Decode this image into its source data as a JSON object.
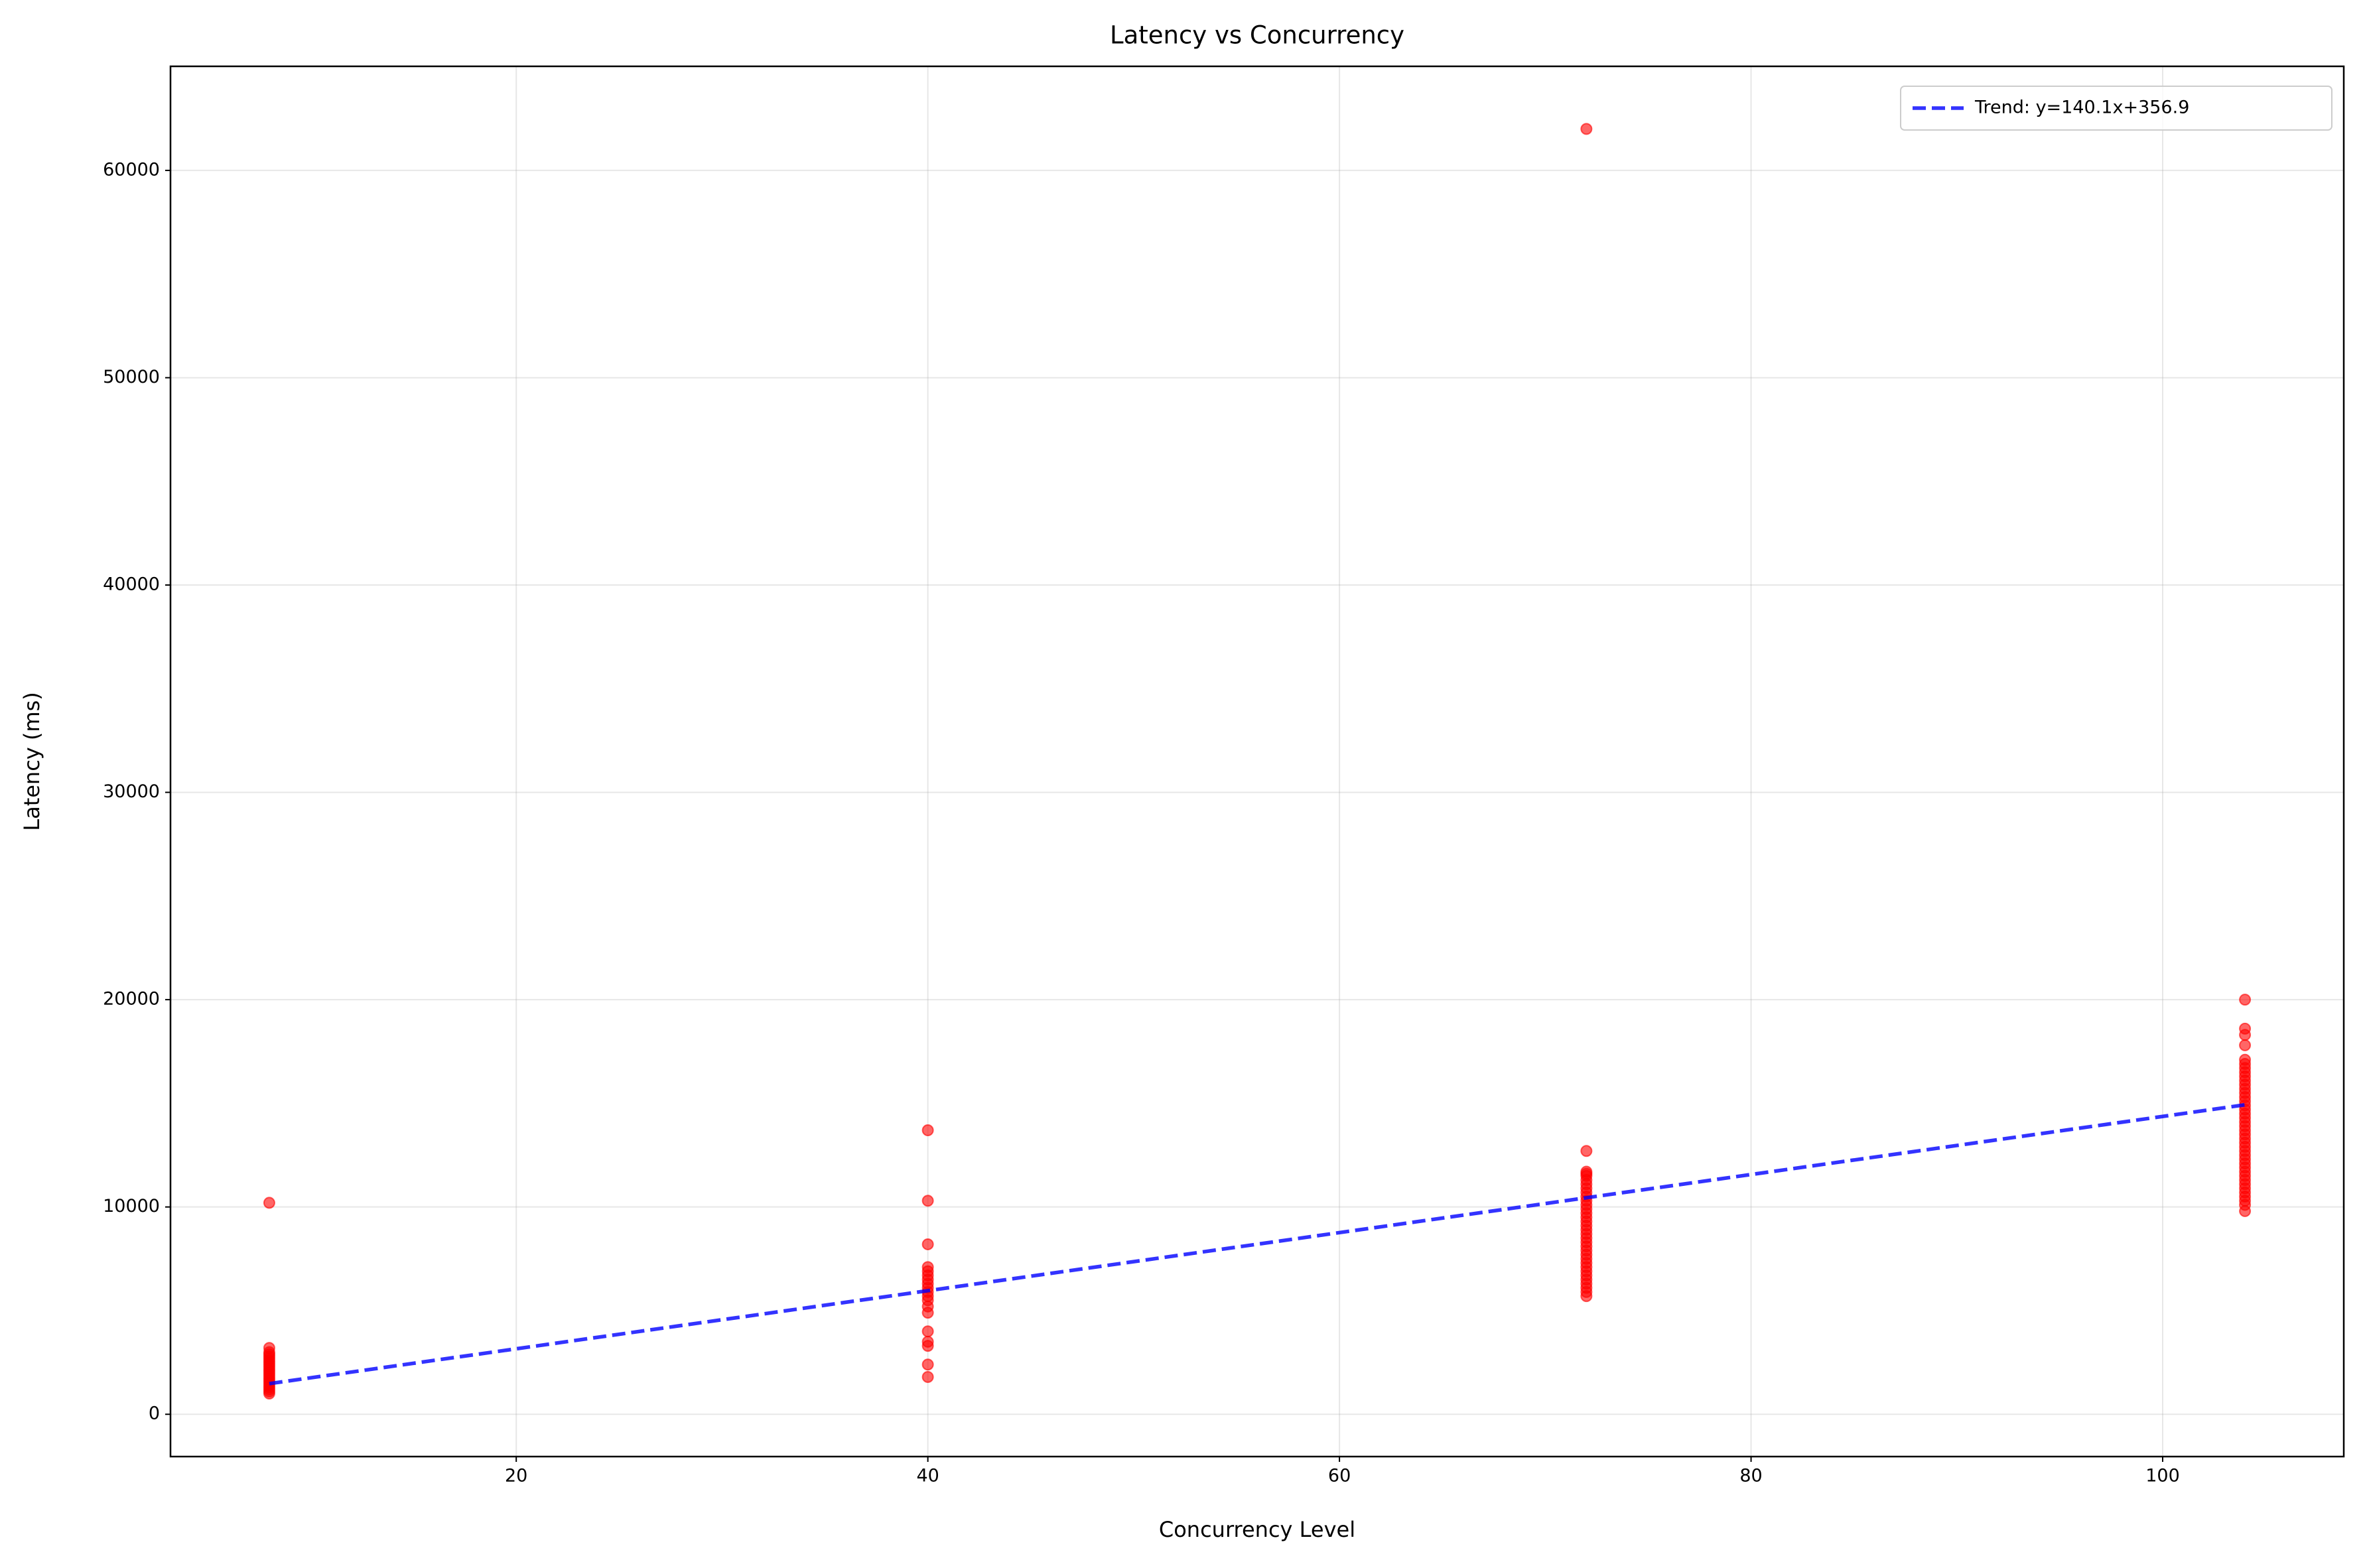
{
  "chart_data": {
    "type": "scatter",
    "title": "Latency vs Concurrency",
    "x_label": "Concurrency Level",
    "y_label": "Latency (ms)",
    "xlim": [
      3.2,
      108.8
    ],
    "ylim": [
      -2040,
      65020
    ],
    "xticks": [
      20,
      40,
      60,
      80,
      100
    ],
    "yticks": [
      0,
      10000,
      20000,
      30000,
      40000,
      50000,
      60000
    ],
    "grid": true,
    "legend": "upper right",
    "series": [
      {
        "color": "#ff0000",
        "x": [
          8,
          8,
          8,
          8,
          8,
          8,
          8,
          8,
          8,
          8,
          8,
          8,
          8,
          8,
          8,
          8,
          8,
          8,
          8,
          8,
          8,
          8,
          8,
          40,
          40,
          40,
          40,
          40,
          40,
          40,
          40,
          40,
          40,
          40,
          40,
          40,
          40,
          40,
          40,
          40,
          40,
          40,
          72,
          72,
          72,
          72,
          72,
          72,
          72,
          72,
          72,
          72,
          72,
          72,
          72,
          72,
          72,
          72,
          72,
          72,
          72,
          72,
          72,
          72,
          72,
          72,
          72,
          72,
          72,
          72,
          72,
          72,
          72,
          72,
          72,
          72,
          104,
          104,
          104,
          104,
          104,
          104,
          104,
          104,
          104,
          104,
          104,
          104,
          104,
          104,
          104,
          104,
          104,
          104,
          104,
          104,
          104,
          104,
          104,
          104,
          104,
          104,
          104,
          104,
          104,
          104,
          104,
          104,
          104,
          104,
          104,
          104,
          104,
          104,
          104,
          104,
          104
        ],
        "values": [
          10200,
          3200,
          3000,
          2900,
          2800,
          2700,
          2600,
          2500,
          2400,
          2300,
          2200,
          2100,
          2000,
          1900,
          1800,
          1700,
          1600,
          1500,
          1400,
          1300,
          1200,
          1100,
          1000,
          13700,
          10300,
          8200,
          7100,
          6900,
          6700,
          6500,
          6300,
          6100,
          5900,
          5700,
          5500,
          5200,
          4900,
          4000,
          3500,
          3300,
          2400,
          1800,
          62000,
          12700,
          11700,
          11600,
          11500,
          11300,
          11100,
          10900,
          10700,
          10500,
          10300,
          10100,
          9900,
          9700,
          9500,
          9300,
          9100,
          8900,
          8700,
          8500,
          8300,
          8100,
          7900,
          7700,
          7500,
          7300,
          7100,
          6900,
          6700,
          6500,
          6300,
          6100,
          5900,
          5700,
          20000,
          18600,
          18300,
          17800,
          17100,
          16900,
          16700,
          16500,
          16300,
          16100,
          15900,
          15700,
          15500,
          15300,
          15100,
          14900,
          14700,
          14500,
          14300,
          14100,
          13900,
          13700,
          13500,
          13300,
          13100,
          12900,
          12700,
          12500,
          12300,
          12100,
          11900,
          11700,
          11500,
          11300,
          11100,
          10900,
          10700,
          10500,
          10300,
          10100,
          9800
        ]
      },
      {
        "name": "Trend: y=140.1x+356.9",
        "type": "line",
        "color": "#0000ff",
        "x": [
          8,
          104
        ],
        "values": [
          1477.7,
          14927.3
        ]
      }
    ]
  }
}
